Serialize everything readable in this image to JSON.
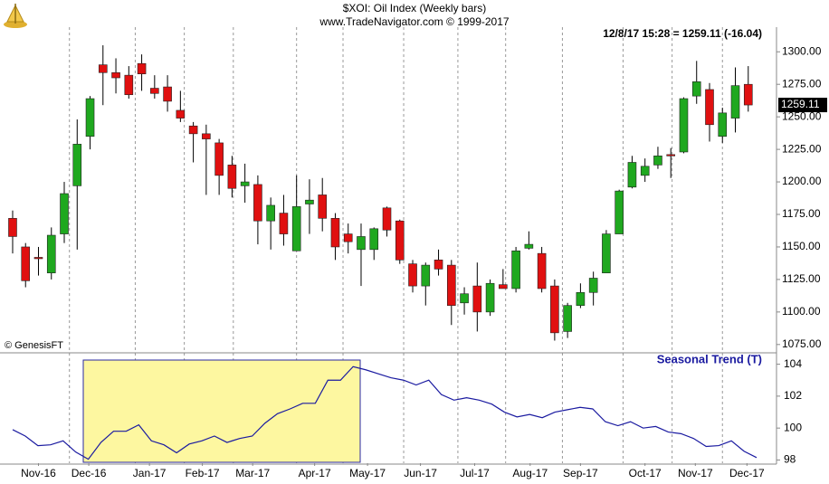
{
  "chart_data": {
    "type": "candlestick",
    "title": "$XOI:  Oil Index  (Weekly bars)",
    "subtitle": "www.TradeNavigator.com © 1999-2017",
    "status": "12/8/17 15:28 = 1259.11 (-16.04)",
    "credit": "© GenesisFT",
    "up_color": "#1fa81f",
    "down_color": "#e01010",
    "open": [
      1172,
      1150,
      1142,
      1130,
      1160,
      1197,
      1235,
      1290,
      1284,
      1282,
      1291,
      1272,
      1273,
      1255,
      1243,
      1237,
      1230,
      1213,
      1197,
      1198,
      1170,
      1176,
      1147,
      1183,
      1190,
      1172,
      1160,
      1148,
      1148,
      1180,
      1170,
      1137,
      1120,
      1140,
      1136,
      1107,
      1120,
      1100,
      1121,
      1118,
      1149,
      1145,
      1120,
      1085,
      1105,
      1115,
      1130,
      1160,
      1196,
      1205,
      1213,
      1221,
      1223,
      1266,
      1271,
      1235,
      1249,
      1275
    ],
    "high": [
      1178,
      1153,
      1150,
      1165,
      1200,
      1248,
      1266,
      1305,
      1295,
      1289,
      1298,
      1282,
      1282,
      1270,
      1246,
      1244,
      1233,
      1220,
      1214,
      1205,
      1188,
      1190,
      1205,
      1202,
      1203,
      1176,
      1168,
      1168,
      1165,
      1181,
      1171,
      1140,
      1138,
      1148,
      1140,
      1119,
      1138,
      1125,
      1133,
      1150,
      1162,
      1150,
      1125,
      1107,
      1122,
      1131,
      1163,
      1194,
      1220,
      1218,
      1227,
      1226,
      1265,
      1293,
      1276,
      1257,
      1288,
      1289
    ],
    "low": [
      1145,
      1119,
      1128,
      1125,
      1153,
      1148,
      1225,
      1259,
      1268,
      1264,
      1270,
      1264,
      1254,
      1246,
      1215,
      1190,
      1190,
      1188,
      1184,
      1152,
      1148,
      1151,
      1147,
      1160,
      1162,
      1140,
      1145,
      1120,
      1140,
      1158,
      1137,
      1115,
      1105,
      1128,
      1090,
      1098,
      1085,
      1097,
      1118,
      1115,
      1148,
      1115,
      1078,
      1080,
      1103,
      1105,
      1130,
      1160,
      1195,
      1200,
      1210,
      1203,
      1222,
      1260,
      1231,
      1230,
      1238,
      1254
    ],
    "close": [
      1158,
      1124,
      1141,
      1159,
      1191,
      1229,
      1264,
      1284,
      1280,
      1267,
      1283,
      1268,
      1262,
      1249,
      1237,
      1233,
      1205,
      1195,
      1200,
      1170,
      1182,
      1160,
      1181,
      1186,
      1172,
      1150,
      1154,
      1158,
      1164,
      1163,
      1140,
      1120,
      1136,
      1133,
      1105,
      1114,
      1100,
      1122,
      1118,
      1147,
      1152,
      1118,
      1084,
      1105,
      1115,
      1126,
      1160,
      1193,
      1215,
      1212,
      1220,
      1220,
      1264,
      1277,
      1244,
      1253,
      1274,
      1259.11
    ],
    "xlim": [
      -0.98,
      59.19
    ],
    "ylim": [
      1070,
      1312
    ],
    "yticks": [
      {
        "value": 1300,
        "label": "1300.00"
      },
      {
        "value": 1275,
        "label": "1275.00"
      },
      {
        "value": 1250,
        "label": "1250.00"
      },
      {
        "value": 1225,
        "label": "1225.00"
      },
      {
        "value": 1200,
        "label": "1200.00"
      },
      {
        "value": 1175,
        "label": "1175.00"
      },
      {
        "value": 1150,
        "label": "1150.00"
      },
      {
        "value": 1125,
        "label": "1125.00"
      },
      {
        "value": 1100,
        "label": "1100.00"
      },
      {
        "value": 1075,
        "label": "1075.00"
      }
    ],
    "xticks": [
      {
        "value": 2,
        "label": "Nov-16"
      },
      {
        "value": 5.9,
        "label": "Dec-16"
      },
      {
        "value": 10.6,
        "label": "Jan-17"
      },
      {
        "value": 14.7,
        "label": "Feb-17"
      },
      {
        "value": 18.6,
        "label": "Mar-17"
      },
      {
        "value": 23.4,
        "label": "Apr-17"
      },
      {
        "value": 27.5,
        "label": "May-17"
      },
      {
        "value": 31.6,
        "label": "Jun-17"
      },
      {
        "value": 35.8,
        "label": "Jul-17"
      },
      {
        "value": 40.1,
        "label": "Aug-17"
      },
      {
        "value": 44,
        "label": "Sep-17"
      },
      {
        "value": 49,
        "label": "Oct-17"
      },
      {
        "value": 52.9,
        "label": "Nov-17"
      },
      {
        "value": 56.9,
        "label": "Dec-17"
      }
    ],
    "xgrid": [
      4.4,
      9.5,
      13.3,
      17.1,
      22,
      25.6,
      30.3,
      34.5,
      38.2,
      42.6,
      47.3,
      51.1,
      55
    ],
    "seasonal": {
      "name": "Seasonal Trend (T)",
      "color": "#1a1aa0",
      "values": [
        99.9,
        99.5,
        98.9,
        98.95,
        99.2,
        98.5,
        98.05,
        99.1,
        99.8,
        99.8,
        100.2,
        99.2,
        98.95,
        98.45,
        99.0,
        99.2,
        99.5,
        99.1,
        99.35,
        99.5,
        100.3,
        100.9,
        101.2,
        101.55,
        101.55,
        103.0,
        103.0,
        103.85,
        103.65,
        103.4,
        103.15,
        103.0,
        102.7,
        103.0,
        102.1,
        101.75,
        101.9,
        101.75,
        101.5,
        101.0,
        100.7,
        100.85,
        100.65,
        101.0,
        101.15,
        101.3,
        101.2,
        100.4,
        100.15,
        100.4,
        100.0,
        100.1,
        99.75,
        99.65,
        99.35,
        98.85,
        98.9,
        99.2,
        98.55,
        98.15
      ],
      "ylim": [
        97.8,
        104.6
      ],
      "yticks": [
        104,
        102,
        100,
        98
      ]
    }
  }
}
